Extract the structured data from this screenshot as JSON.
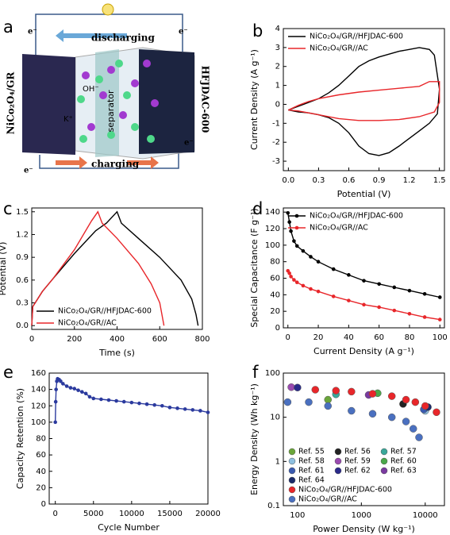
{
  "schematic": {
    "panel_label": "a",
    "electron_labels": [
      "e⁻",
      "e⁻",
      "e⁻",
      "e⁻"
    ],
    "discharging": "discharging",
    "charging": "charging",
    "left_electrode": "NiCo₂O₄/GR",
    "right_electrode": "HFJDAC-600",
    "anion": "OH⁻",
    "cation": "K⁺",
    "separator": "separator"
  },
  "chart_data": [
    {
      "type": "line",
      "panel_label": "b",
      "xlabel": "Potential (V)",
      "ylabel": "Current Density (A g⁻¹)",
      "xlim": [
        -0.05,
        1.55
      ],
      "xticks": [
        {
          "value": 0,
          "label": "0.0"
        },
        0.3,
        0.6,
        0.9,
        1.2,
        1.5
      ],
      "ylim": [
        -3.5,
        4
      ],
      "yticks": [
        -3,
        -2,
        -1,
        0,
        1,
        2,
        3,
        4
      ],
      "legend": "upper left",
      "series": [
        {
          "name": "NiCo₂O₄/GR//HFJDAC-600",
          "color": "#000000",
          "x": [
            0,
            0.1,
            0.2,
            0.3,
            0.4,
            0.5,
            0.6,
            0.7,
            0.8,
            0.9,
            1.0,
            1.1,
            1.2,
            1.3,
            1.4,
            1.45,
            1.5,
            1.48,
            1.4,
            1.3,
            1.2,
            1.1,
            1.0,
            0.9,
            0.8,
            0.7,
            0.6,
            0.5,
            0.4,
            0.3,
            0.2,
            0.1,
            0
          ],
          "values": [
            -0.3,
            -0.1,
            0.1,
            0.3,
            0.6,
            1.0,
            1.5,
            2.0,
            2.3,
            2.5,
            2.65,
            2.8,
            2.9,
            3.0,
            2.9,
            2.6,
            0.8,
            -0.5,
            -1.0,
            -1.4,
            -1.8,
            -2.2,
            -2.55,
            -2.7,
            -2.6,
            -2.2,
            -1.5,
            -1.0,
            -0.7,
            -0.55,
            -0.45,
            -0.4,
            -0.3
          ]
        },
        {
          "name": "NiCo₂O₄/GR//AC",
          "color": "#e8262a",
          "x": [
            0,
            0.1,
            0.2,
            0.3,
            0.5,
            0.7,
            0.9,
            1.1,
            1.3,
            1.4,
            1.5,
            1.5,
            1.45,
            1.3,
            1.1,
            0.9,
            0.7,
            0.5,
            0.3,
            0.1,
            0
          ],
          "values": [
            -0.3,
            -0.05,
            0.15,
            0.3,
            0.5,
            0.65,
            0.75,
            0.85,
            0.95,
            1.2,
            1.2,
            0.1,
            -0.4,
            -0.65,
            -0.8,
            -0.85,
            -0.85,
            -0.75,
            -0.55,
            -0.35,
            -0.3
          ]
        }
      ]
    },
    {
      "type": "line",
      "panel_label": "c",
      "xlabel": "Time (s)",
      "ylabel": "Potential (V)",
      "xlim": [
        0,
        800
      ],
      "xticks": [
        0,
        200,
        400,
        600,
        800
      ],
      "ylim": [
        -0.05,
        1.55
      ],
      "yticks": [
        {
          "value": 0,
          "label": "0.0"
        },
        0.3,
        0.6,
        0.9,
        1.2,
        1.5
      ],
      "legend": "lower left",
      "series": [
        {
          "name": "NiCo₂O₄/GR//HFJDAC-600",
          "color": "#000000",
          "x": [
            0,
            5,
            50,
            100,
            200,
            300,
            350,
            400,
            420,
            500,
            600,
            700,
            750,
            770,
            780
          ],
          "values": [
            0,
            0.25,
            0.45,
            0.62,
            0.95,
            1.25,
            1.35,
            1.5,
            1.35,
            1.15,
            0.9,
            0.6,
            0.35,
            0.15,
            0
          ]
        },
        {
          "name": "NiCo₂O₄/GR//AC",
          "color": "#e8262a",
          "x": [
            0,
            5,
            50,
            100,
            200,
            280,
            310,
            330,
            400,
            500,
            560,
            600,
            620
          ],
          "values": [
            0,
            0.25,
            0.45,
            0.62,
            1.0,
            1.38,
            1.5,
            1.35,
            1.15,
            0.82,
            0.55,
            0.3,
            0
          ]
        }
      ]
    },
    {
      "type": "line",
      "panel_label": "d",
      "xlabel": "Current Density (A g⁻¹)",
      "ylabel": "Special Capacitance (F g⁻¹)",
      "xlim": [
        -3,
        103
      ],
      "xticks": [
        0,
        20,
        40,
        60,
        80,
        100
      ],
      "ylim": [
        0,
        145
      ],
      "yticks": [
        0,
        20,
        40,
        60,
        80,
        100,
        120,
        140
      ],
      "legend": "upper left",
      "markers": true,
      "x": [
        0,
        1,
        2,
        4,
        6,
        10,
        15,
        20,
        30,
        40,
        50,
        60,
        70,
        80,
        90,
        100
      ],
      "series": [
        {
          "name": "NiCo₂O₄/GR//HFJDAC-600",
          "color": "#000000",
          "values": [
            139,
            128,
            117,
            105,
            99,
            93,
            86,
            80,
            71,
            64,
            57,
            53,
            49,
            45,
            41,
            37
          ]
        },
        {
          "name": "NiCo₂O₄/GR//AC",
          "color": "#e8262a",
          "values": [
            69,
            66,
            62,
            58,
            55,
            51,
            47,
            44,
            38,
            33,
            28,
            25,
            21,
            17,
            13,
            10
          ]
        }
      ]
    },
    {
      "type": "line",
      "panel_label": "e",
      "xlabel": "Cycle Number",
      "ylabel": "Capacity Retention (%)",
      "xlim": [
        -800,
        20000
      ],
      "xticks": [
        0,
        5000,
        10000,
        15000,
        20000
      ],
      "ylim": [
        0,
        160
      ],
      "yticks": [
        0,
        20,
        40,
        60,
        80,
        100,
        120,
        140,
        160
      ],
      "markers": true,
      "series": [
        {
          "color": "#2b3a9e",
          "x": [
            0,
            50,
            100,
            200,
            300,
            500,
            700,
            1000,
            1500,
            2000,
            2500,
            3000,
            3500,
            4000,
            4500,
            5000,
            6000,
            7000,
            8000,
            9000,
            10000,
            11000,
            12000,
            13000,
            14000,
            15000,
            16000,
            17000,
            18000,
            19000,
            20000
          ],
          "values": [
            100,
            125,
            140,
            150,
            153,
            152,
            150,
            147,
            144,
            142,
            141,
            139,
            137,
            135,
            131,
            129,
            128,
            127,
            126,
            125,
            124,
            123,
            122,
            121,
            120,
            118,
            117,
            116,
            115,
            114,
            112
          ]
        }
      ]
    },
    {
      "type": "scatter",
      "panel_label": "f",
      "xlabel": "Power Density (W kg⁻¹)",
      "ylabel": "Energy Density (Wh kg⁻¹)",
      "xlog": true,
      "ylog": true,
      "xlim": [
        60,
        20000
      ],
      "xticks": [
        100,
        1000,
        10000
      ],
      "ylim": [
        0.1,
        100
      ],
      "yticks": [
        0.1,
        1,
        10,
        100
      ],
      "legend": "lower left",
      "series": [
        {
          "name": "Ref. 55",
          "color": "#6aa63a",
          "x": [
            300
          ],
          "values": [
            25
          ]
        },
        {
          "name": "Ref. 56",
          "color": "#222222",
          "x": [
            4500
          ],
          "values": [
            20
          ]
        },
        {
          "name": "Ref. 57",
          "color": "#3aa89a",
          "x": [
            400
          ],
          "values": [
            33
          ]
        },
        {
          "name": "Ref. 58",
          "color": "#8fc0e0",
          "x": [
            10000
          ],
          "values": [
            14
          ]
        },
        {
          "name": "Ref. 59",
          "color": "#9a4ab0",
          "x": [
            80
          ],
          "values": [
            48
          ]
        },
        {
          "name": "Ref. 60",
          "color": "#4aa84a",
          "x": [
            1800
          ],
          "values": [
            35
          ]
        },
        {
          "name": "Ref. 61",
          "color": "#3a5ab0",
          "x": [
            9500
          ],
          "values": [
            15
          ]
        },
        {
          "name": "Ref. 62",
          "color": "#2a2a8a",
          "x": [
            100
          ],
          "values": [
            47
          ]
        },
        {
          "name": "Ref. 63",
          "color": "#7a3aa0",
          "x": [
            1300
          ],
          "values": [
            32
          ]
        },
        {
          "name": "Ref. 64",
          "color": "#1a2a6a",
          "x": [
            11000
          ],
          "values": [
            17
          ]
        },
        {
          "name": "NiCo₂O₄/GR//HFJDAC-600",
          "color": "#e8262a",
          "x": [
            190,
            400,
            700,
            1500,
            3000,
            5000,
            7000,
            10000,
            15000
          ],
          "values": [
            42,
            40,
            38,
            34,
            30,
            25,
            22,
            18,
            13
          ]
        },
        {
          "name": "NiCo₂O₄/GR//AC",
          "color": "#4a70c0",
          "x": [
            70,
            150,
            300,
            700,
            1500,
            3000,
            5000,
            6500,
            8000
          ],
          "values": [
            22,
            22,
            18,
            14,
            12,
            10,
            8,
            5.5,
            3.5
          ]
        }
      ]
    }
  ]
}
